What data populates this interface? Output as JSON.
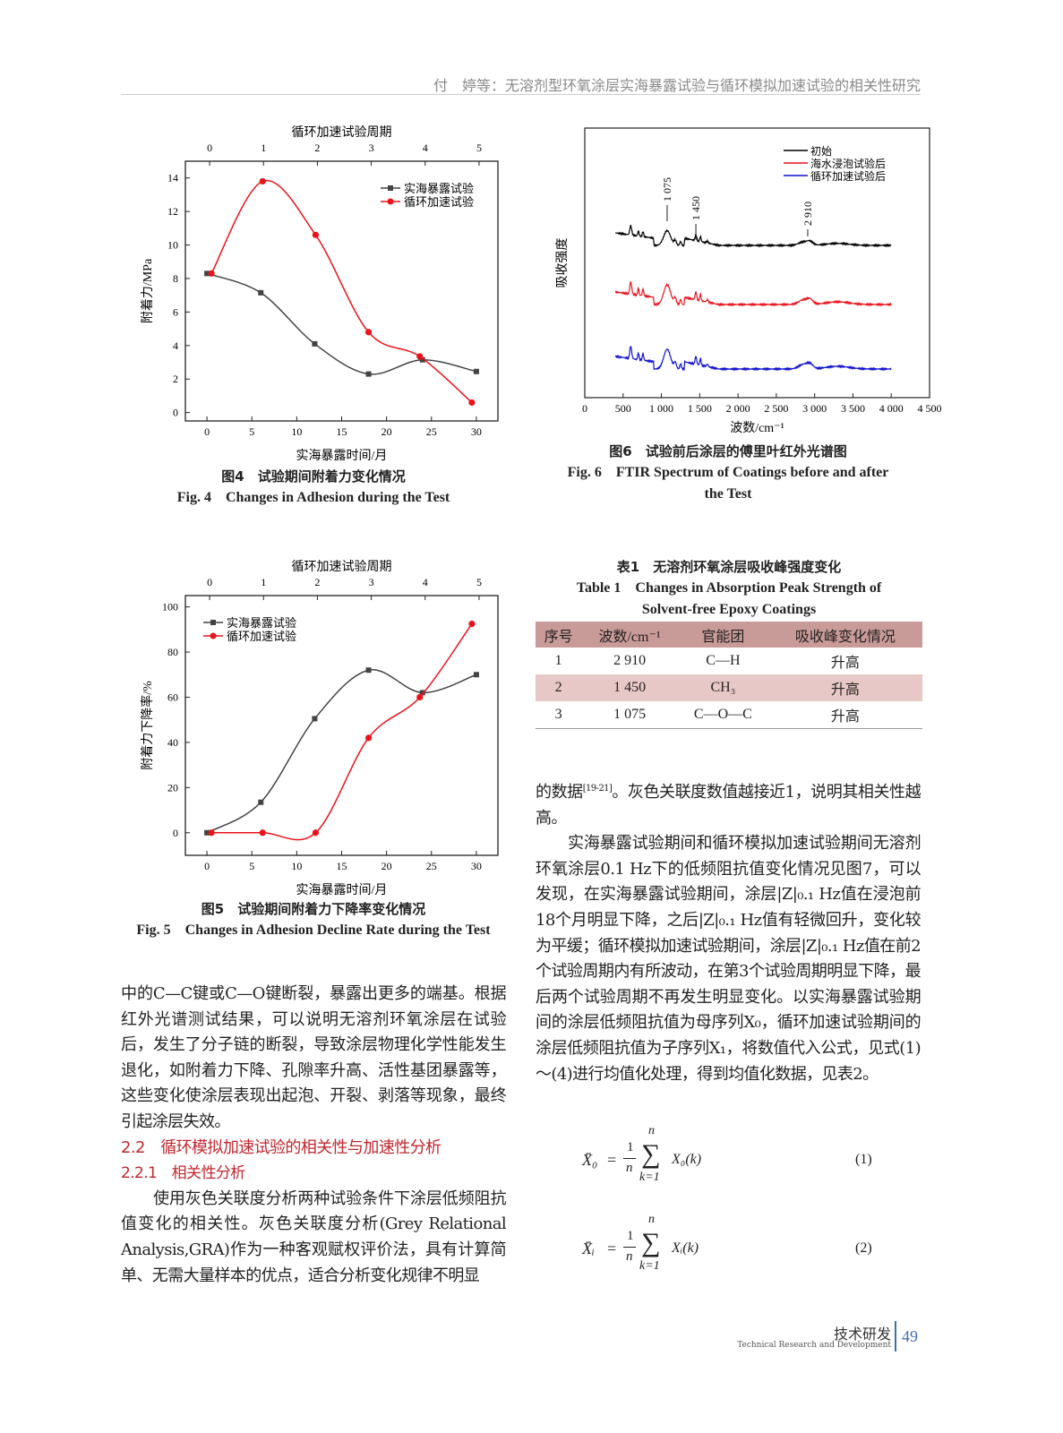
{
  "header": {
    "running_title": "付　婷等：无溶剂型环氧涂层实海暴露试验与循环模拟加速试验的相关性研究"
  },
  "fig4": {
    "caption_cn": "图4　试验期间附着力变化情况",
    "caption_en": "Fig. 4　Changes in Adhesion during the Test"
  },
  "fig5": {
    "caption_cn": "图5　试验期间附着力下降率变化情况",
    "caption_en": "Fig. 5　Changes in Adhesion Decline Rate during the Test"
  },
  "fig6": {
    "caption_cn": "图6　试验前后涂层的傅里叶红外光谱图",
    "caption_en": "Fig. 6　FTIR Spectrum of Coatings before and after",
    "caption_en2": "the Test"
  },
  "chart_data": [
    {
      "type": "scatter",
      "xlabel": "实海暴露时间/月",
      "x2label": "循环加速试验周期",
      "ylabel": "附着力/MPa",
      "xlim": [
        -2.4,
        32.4
      ],
      "ylim": [
        -0.5,
        15
      ],
      "xticks": [
        0,
        5,
        10,
        15,
        20,
        25,
        30
      ],
      "x2ticks": [
        0,
        1,
        2,
        3,
        4,
        5
      ],
      "yticks": [
        0,
        2,
        4,
        6,
        8,
        10,
        12,
        14
      ],
      "legend": "top-right",
      "grid": false,
      "series": [
        {
          "name": "实海暴露试验",
          "marker": "square",
          "color": "#444444",
          "x": [
            0,
            6,
            12,
            18,
            24,
            30
          ],
          "y": [
            8.3,
            7.15,
            4.1,
            2.3,
            3.15,
            2.45
          ]
        },
        {
          "name": "循环加速试验",
          "marker": "circle",
          "color": "#e8141c",
          "x": [
            0.5,
            6.2,
            12.1,
            18,
            23.7,
            29.5
          ],
          "y": [
            8.3,
            13.8,
            10.6,
            4.8,
            3.35,
            0.6
          ]
        }
      ]
    },
    {
      "type": "scatter",
      "xlabel": "实海暴露时间/月",
      "x2label": "循环加速试验周期",
      "ylabel": "附着力下降率/%",
      "xlim": [
        -2.4,
        32.4
      ],
      "ylim": [
        -10,
        105
      ],
      "xticks": [
        0,
        5,
        10,
        15,
        20,
        25,
        30
      ],
      "x2ticks": [
        0,
        1,
        2,
        3,
        4,
        5
      ],
      "yticks": [
        0,
        20,
        40,
        60,
        80,
        100
      ],
      "legend": "top-left",
      "grid": false,
      "series": [
        {
          "name": "实海暴露试验",
          "marker": "square",
          "color": "#444444",
          "x": [
            0,
            6,
            12,
            18,
            24,
            30
          ],
          "y": [
            0,
            13.5,
            50.5,
            72,
            62,
            70
          ]
        },
        {
          "name": "循环加速试验",
          "marker": "circle",
          "color": "#e8141c",
          "x": [
            0.5,
            6.2,
            12.1,
            18,
            23.7,
            29.5
          ],
          "y": [
            0,
            0,
            0,
            42,
            60,
            92.5
          ]
        }
      ]
    },
    {
      "type": "line",
      "xlabel": "波数/cm⁻¹",
      "ylabel": "吸收强度",
      "xlim": [
        0,
        4500
      ],
      "xticks": [
        "0",
        "500",
        "1 000",
        "1 500",
        "2 000",
        "2 500",
        "3 000",
        "3 500",
        "4 000",
        "4 500"
      ],
      "legend": "top-right",
      "annotations": [
        "1 075",
        "1 450",
        "2 910"
      ],
      "series": [
        {
          "name": "初始",
          "color": "#000000"
        },
        {
          "name": "海水浸泡试验后",
          "color": "#e8141c"
        },
        {
          "name": "循环加速试验后",
          "color": "#1010d0"
        }
      ]
    }
  ],
  "table1": {
    "title_cn": "表1　无溶剂环氧涂层吸收峰强度变化",
    "title_en1": "Table 1　Changes in Absorption Peak Strength of",
    "title_en2": "Solvent-free Epoxy Coatings",
    "headers": [
      "序号",
      "波数/cm⁻¹",
      "官能团",
      "吸收峰变化情况"
    ],
    "rows": [
      [
        "1",
        "2 910",
        "C—H",
        "升高"
      ],
      [
        "2",
        "1 450",
        "CH₃",
        "升高"
      ],
      [
        "3",
        "1 075",
        "C—O—C",
        "升高"
      ]
    ]
  },
  "left_text": {
    "p1": "中的C—C键或C—O键断裂，暴露出更多的端基。根据红外光谱测试结果，可以说明无溶剂环氧涂层在试验后，发生了分子链的断裂，导致涂层物理化学性能发生退化，如附着力下降、孔隙率升高、活性基团暴露等，这些变化使涂层表现出起泡、开裂、剥落等现象，最终引起涂层失效。",
    "h2": "2.2　循环模拟加速试验的相关性与加速性分析",
    "h3": "2.2.1　相关性分析",
    "p2": "使用灰色关联度分析两种试验条件下涂层低频阻抗值变化的相关性。灰色关联度分析(Grey Relational Analysis,GRA)作为一种客观赋权评价法，具有计算简单、无需大量样本的优点，适合分析变化规律不明显"
  },
  "right_text": {
    "p1a": "的数据",
    "p1ref": "[19-21]",
    "p1b": "。灰色关联度数值越接近1，说明其相关性越高。",
    "p2": "实海暴露试验期间和循环模拟加速试验期间无溶剂环氧涂层0.1 Hz下的低频阻抗值变化情况见图7，可以发现，在实海暴露试验期间，涂层|Z|₀.₁ Hz值在浸泡前18个月明显下降，之后|Z|₀.₁ Hz值有轻微回升，变化较为平缓；循环模拟加速试验期间，涂层|Z|₀.₁ Hz值在前2个试验周期内有所波动，在第3个试验周期明显下降，最后两个试验周期不再发生明显变化。以实海暴露试验期间的涂层低频阻抗值为母序列X₀，循环加速试验期间的涂层低频阻抗值为子序列X₁，将数值代入公式，见式(1)～(4)进行均值化处理，得到均值化数据，见表2。"
  },
  "equations": [
    {
      "lhs": "X̄₀",
      "rhs": "X₀(k)",
      "num": "(1)"
    },
    {
      "lhs": "X̄ᵢ",
      "rhs": "Xᵢ(k)",
      "num": "(2)"
    }
  ],
  "eq_parts": {
    "one": "1",
    "n": "n",
    "sigma": "∑",
    "upper": "n",
    "lower": "k=1",
    "eq": "="
  },
  "footer": {
    "section_cn": "技术研发",
    "section_en": "Technical Research and Development",
    "page": "49"
  }
}
